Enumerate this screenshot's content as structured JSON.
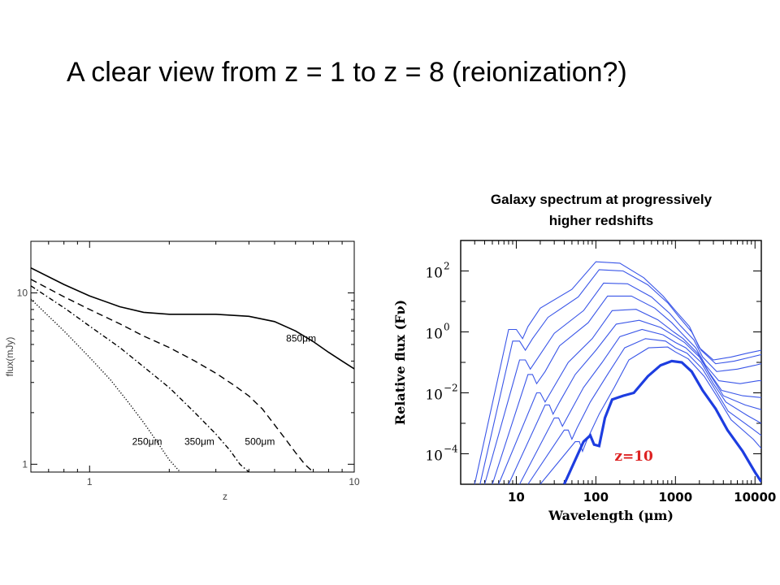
{
  "slide": {
    "title": "A clear view from z = 1 to z = 8 (reionization?)",
    "right_heading_line1": "Galaxy spectrum at progressively",
    "right_heading_line2": "higher redshifts"
  },
  "chart_data": [
    {
      "type": "line",
      "xlabel": "z",
      "ylabel": "flux(mJy)",
      "xscale": "log",
      "yscale": "log",
      "xlim": [
        0.6,
        10
      ],
      "ylim": [
        0.9,
        20
      ],
      "x_ticks": [
        {
          "value": 1,
          "label": "1"
        },
        {
          "value": 10,
          "label": "10"
        }
      ],
      "y_ticks": [
        {
          "value": 1,
          "label": "1"
        },
        {
          "value": 10,
          "label": "10"
        }
      ],
      "grid": false,
      "series": [
        {
          "name": "850μm",
          "style": "solid",
          "x": [
            0.6,
            0.8,
            1.0,
            1.3,
            1.6,
            2.0,
            3.0,
            4.0,
            5.0,
            6.0,
            7.0,
            8.0,
            9.0,
            10.0
          ],
          "y": [
            14.0,
            11.2,
            9.6,
            8.3,
            7.7,
            7.5,
            7.5,
            7.3,
            6.8,
            6.0,
            5.2,
            4.5,
            4.0,
            3.6
          ]
        },
        {
          "name": "500μm",
          "style": "dashed",
          "x": [
            0.6,
            0.8,
            1.0,
            1.3,
            1.6,
            2.0,
            2.5,
            3.0,
            3.5,
            4.0,
            4.5,
            5.0,
            5.5,
            6.0,
            6.5,
            7.0
          ],
          "y": [
            12.0,
            9.5,
            8.0,
            6.6,
            5.6,
            4.8,
            4.0,
            3.4,
            2.9,
            2.5,
            2.1,
            1.7,
            1.4,
            1.17,
            1.0,
            0.9
          ]
        },
        {
          "name": "350μm",
          "style": "dashdot",
          "x": [
            0.6,
            0.8,
            1.0,
            1.3,
            1.6,
            2.0,
            2.5,
            3.0,
            3.4,
            3.7,
            4.0
          ],
          "y": [
            11.0,
            8.2,
            6.4,
            4.8,
            3.7,
            2.8,
            2.0,
            1.5,
            1.2,
            1.0,
            0.9
          ]
        },
        {
          "name": "250μm",
          "style": "dotted",
          "x": [
            0.6,
            0.8,
            1.0,
            1.2,
            1.4,
            1.6,
            1.8,
            2.0,
            2.2
          ],
          "y": [
            9.2,
            6.0,
            4.2,
            3.1,
            2.3,
            1.75,
            1.35,
            1.06,
            0.9
          ]
        }
      ],
      "annotations": [
        {
          "text": "850μm",
          "x": 6.3,
          "y": 5.2
        },
        {
          "text": "500μm",
          "x": 4.4,
          "y": 1.3
        },
        {
          "text": "350μm",
          "x": 2.6,
          "y": 1.3
        },
        {
          "text": "250μm",
          "x": 1.65,
          "y": 1.3
        }
      ]
    },
    {
      "type": "line",
      "xlabel": "Wavelength (μm)",
      "ylabel": "Relative flux (Fν)",
      "xscale": "log",
      "yscale": "log",
      "xlim": [
        2,
        12000
      ],
      "ylim": [
        1e-05,
        1000
      ],
      "x_ticks": [
        {
          "value": 10,
          "label": "10"
        },
        {
          "value": 100,
          "label": "100"
        },
        {
          "value": 1000,
          "label": "1000"
        },
        {
          "value": 10000,
          "label": "10000"
        }
      ],
      "y_ticks": [
        {
          "value": 0.0001,
          "base": "10",
          "exp": "−4"
        },
        {
          "value": 0.01,
          "base": "10",
          "exp": "−2"
        },
        {
          "value": 1,
          "base": "10",
          "exp": "0"
        },
        {
          "value": 100,
          "base": "10",
          "exp": "2"
        }
      ],
      "grid": false,
      "colors": {
        "curve": "#3a56e8",
        "highlight": "#1d3de0",
        "label": "#dd2222"
      },
      "series": [
        {
          "x": [
            3,
            8,
            10,
            12,
            14,
            20,
            50,
            100,
            200,
            400,
            700,
            1000,
            1500,
            2000,
            3000,
            5000,
            8000,
            12000
          ],
          "y": [
            1e-05,
            1.2,
            1.2,
            0.6,
            1.5,
            6,
            25,
            200,
            180,
            60,
            15,
            5,
            1.5,
            0.3,
            0.12,
            0.15,
            0.2,
            0.25
          ]
        },
        {
          "x": [
            3.5,
            9,
            11,
            13,
            16,
            25,
            60,
            110,
            220,
            450,
            800,
            1100,
            1600,
            2100,
            3200,
            5500,
            9000,
            12000
          ],
          "y": [
            1e-05,
            0.5,
            0.5,
            0.25,
            0.6,
            3,
            14,
            110,
            100,
            35,
            9,
            3.2,
            1.0,
            0.25,
            0.09,
            0.11,
            0.15,
            0.18
          ]
        },
        {
          "x": [
            4,
            11,
            13,
            15,
            19,
            30,
            70,
            125,
            250,
            500,
            850,
            1150,
            1700,
            2200,
            3300,
            6000,
            10000,
            12000
          ],
          "y": [
            1e-05,
            0.12,
            0.12,
            0.06,
            0.15,
            0.9,
            5,
            40,
            38,
            14,
            4,
            1.6,
            0.55,
            0.15,
            0.05,
            0.06,
            0.08,
            0.09
          ]
        },
        {
          "x": [
            5,
            14,
            16,
            18,
            23,
            35,
            80,
            140,
            280,
            550,
            900,
            1200,
            1800,
            2400,
            3500,
            6500,
            11000,
            12000
          ],
          "y": [
            1e-05,
            0.04,
            0.04,
            0.02,
            0.05,
            0.35,
            2,
            15,
            15,
            6,
            2,
            0.9,
            0.3,
            0.08,
            0.025,
            0.02,
            0.025,
            0.025
          ]
        },
        {
          "x": [
            6,
            18,
            20,
            23,
            28,
            45,
            90,
            160,
            320,
            600,
            950,
            1250,
            1900,
            2600,
            3800,
            7000,
            12000
          ],
          "y": [
            1e-05,
            0.01,
            0.01,
            0.005,
            0.012,
            0.1,
            0.6,
            5,
            5.5,
            2.5,
            1,
            0.6,
            0.2,
            0.05,
            0.012,
            0.008,
            0.007
          ]
        },
        {
          "x": [
            8,
            23,
            26,
            29,
            35,
            55,
            100,
            180,
            350,
            650,
            1000,
            1300,
            2000,
            2800,
            4000,
            7500,
            12000
          ],
          "y": [
            1e-05,
            0.004,
            0.004,
            0.002,
            0.005,
            0.04,
            0.25,
            1.8,
            2.4,
            1.4,
            0.7,
            0.45,
            0.15,
            0.035,
            0.008,
            0.004,
            0.0028
          ]
        },
        {
          "x": [
            11,
            30,
            34,
            38,
            45,
            70,
            120,
            200,
            380,
            700,
            1000,
            1350,
            2100,
            3000,
            4300,
            8000,
            12000
          ],
          "y": [
            1e-05,
            0.0015,
            0.0015,
            0.0008,
            0.0018,
            0.015,
            0.1,
            0.7,
            1.2,
            0.8,
            0.45,
            0.3,
            0.1,
            0.02,
            0.005,
            0.0018,
            0.001
          ]
        },
        {
          "x": [
            14,
            40,
            45,
            50,
            58,
            85,
            140,
            230,
            420,
            750,
            1000,
            1400,
            2200,
            3200,
            4600,
            9000,
            12000
          ],
          "y": [
            1e-05,
            0.0006,
            0.0006,
            0.0003,
            0.0007,
            0.005,
            0.04,
            0.3,
            0.6,
            0.5,
            0.3,
            0.2,
            0.06,
            0.012,
            0.0025,
            0.0007,
            0.0004
          ]
        },
        {
          "x": [
            20,
            55,
            62,
            68,
            78,
            110,
            170,
            260,
            460,
            800,
            1000,
            1450,
            2300,
            3400,
            5000,
            9500,
            12000
          ],
          "y": [
            1e-05,
            0.00025,
            0.00025,
            0.00012,
            0.0003,
            0.002,
            0.015,
            0.12,
            0.3,
            0.32,
            0.22,
            0.13,
            0.035,
            0.007,
            0.0013,
            0.0003,
            0.00015
          ]
        }
      ],
      "highlight_series": {
        "name": "z=10",
        "x": [
          40,
          70,
          85,
          95,
          110,
          130,
          160,
          220,
          300,
          450,
          650,
          900,
          1200,
          1600,
          2200,
          3200,
          4500,
          7000,
          10000,
          12000
        ],
        "y": [
          1e-05,
          0.00025,
          0.0004,
          0.0002,
          0.00018,
          0.0015,
          0.006,
          0.008,
          0.01,
          0.035,
          0.08,
          0.11,
          0.1,
          0.05,
          0.012,
          0.003,
          0.0006,
          0.00012,
          2.5e-05,
          1.2e-05
        ]
      },
      "annotations": [
        {
          "text": "z=10",
          "x": 300,
          "y": 6e-05
        }
      ]
    }
  ]
}
